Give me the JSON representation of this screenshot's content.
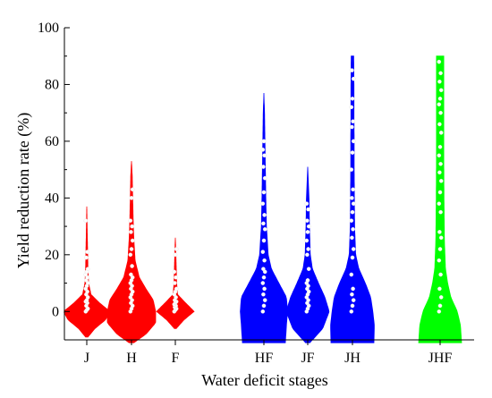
{
  "chart_data": {
    "type": "violin",
    "xlabel": "Water deficit stages",
    "ylabel": "Yield reduction rate (%)",
    "ylim": [
      -10,
      100
    ],
    "yticks": [
      0,
      20,
      40,
      60,
      80,
      100
    ],
    "grid": false,
    "colors": {
      "J": "#ff0000",
      "H": "#ff0000",
      "F": "#ff0000",
      "HF": "#0000ff",
      "JF": "#0000ff",
      "JH": "#0000ff",
      "JHF": "#00ff00"
    },
    "categories": [
      {
        "label": "J",
        "group": "single",
        "color": "#ff0000",
        "min": -9,
        "max": 37,
        "profile": [
          [
            -9,
            0.05
          ],
          [
            -6,
            0.35
          ],
          [
            -3,
            0.8
          ],
          [
            0,
            1
          ],
          [
            3,
            0.55
          ],
          [
            6,
            0.18
          ],
          [
            10,
            0.08
          ],
          [
            15,
            0.05
          ],
          [
            20,
            0.04
          ],
          [
            28,
            0.02
          ],
          [
            37,
            0
          ]
        ],
        "points": [
          0,
          0.5,
          1,
          2,
          3,
          3.5,
          4,
          5,
          6,
          7,
          8,
          9,
          10,
          11,
          12,
          13,
          14,
          15,
          19,
          21,
          32
        ]
      },
      {
        "label": "H",
        "group": "single",
        "color": "#ff0000",
        "min": -11,
        "max": 53,
        "profile": [
          [
            -11,
            0.1
          ],
          [
            -8,
            0.6
          ],
          [
            -4,
            1
          ],
          [
            0,
            1
          ],
          [
            4,
            0.9
          ],
          [
            8,
            0.6
          ],
          [
            12,
            0.32
          ],
          [
            18,
            0.15
          ],
          [
            25,
            0.1
          ],
          [
            32,
            0.07
          ],
          [
            40,
            0.05
          ],
          [
            48,
            0.03
          ],
          [
            53,
            0
          ]
        ],
        "points": [
          0,
          1,
          2,
          3,
          4,
          5,
          6,
          7,
          8,
          9,
          10,
          11,
          12,
          13,
          16,
          20,
          22,
          25,
          28,
          30,
          32,
          40,
          43
        ]
      },
      {
        "label": "F",
        "group": "single",
        "color": "#ff0000",
        "min": -6,
        "max": 26,
        "profile": [
          [
            -6,
            0.05
          ],
          [
            -3,
            0.45
          ],
          [
            0,
            1
          ],
          [
            3,
            0.55
          ],
          [
            6,
            0.12
          ],
          [
            10,
            0.07
          ],
          [
            15,
            0.05
          ],
          [
            20,
            0.03
          ],
          [
            26,
            0
          ]
        ],
        "points": [
          0,
          0.5,
          1,
          1.5,
          2,
          2.5,
          3,
          3.5,
          4,
          5,
          6,
          7,
          8,
          10,
          12,
          14,
          20,
          22
        ]
      },
      {
        "label": "HF",
        "group": "double",
        "color": "#0000ff",
        "min": -11,
        "max": 77,
        "profile": [
          [
            -11,
            1
          ],
          [
            -5,
            1.05
          ],
          [
            0,
            1.1
          ],
          [
            5,
            1.05
          ],
          [
            10,
            0.7
          ],
          [
            15,
            0.35
          ],
          [
            20,
            0.2
          ],
          [
            30,
            0.12
          ],
          [
            40,
            0.09
          ],
          [
            50,
            0.07
          ],
          [
            60,
            0.05
          ],
          [
            70,
            0.03
          ],
          [
            77,
            0
          ]
        ],
        "points": [
          0,
          2,
          4,
          6,
          8,
          10,
          12,
          14,
          15,
          18,
          21,
          25,
          29,
          31,
          34,
          38,
          42,
          47,
          51,
          55,
          57,
          60
        ]
      },
      {
        "label": "JF",
        "group": "double",
        "color": "#0000ff",
        "min": -11,
        "max": 51,
        "profile": [
          [
            -11,
            0.1
          ],
          [
            -6,
            0.7
          ],
          [
            0,
            1
          ],
          [
            5,
            0.8
          ],
          [
            10,
            0.5
          ],
          [
            15,
            0.22
          ],
          [
            20,
            0.12
          ],
          [
            30,
            0.08
          ],
          [
            40,
            0.06
          ],
          [
            51,
            0
          ]
        ],
        "points": [
          0,
          1,
          2,
          3,
          4,
          5,
          6,
          7,
          8,
          9,
          10,
          11,
          15,
          20,
          22,
          25,
          28,
          30,
          32,
          36,
          38
        ]
      },
      {
        "label": "JH",
        "group": "double",
        "color": "#0000ff",
        "min": -11,
        "max": 90,
        "profile": [
          [
            -11,
            1
          ],
          [
            -5,
            1.02
          ],
          [
            0,
            0.95
          ],
          [
            5,
            0.85
          ],
          [
            10,
            0.6
          ],
          [
            15,
            0.3
          ],
          [
            20,
            0.15
          ],
          [
            30,
            0.1
          ],
          [
            40,
            0.09
          ],
          [
            50,
            0.08
          ],
          [
            60,
            0.08
          ],
          [
            70,
            0.07
          ],
          [
            80,
            0.07
          ],
          [
            88,
            0.06
          ],
          [
            90,
            0.06
          ]
        ],
        "points": [
          0,
          2,
          4,
          6,
          8,
          13,
          19,
          22,
          26,
          29,
          32,
          35,
          38,
          40,
          43,
          50,
          56,
          60,
          65,
          67,
          72,
          75,
          82,
          85
        ]
      },
      {
        "label": "JHF",
        "group": "triple",
        "color": "#00ff00",
        "min": -11,
        "max": 90,
        "profile": [
          [
            -11,
            1
          ],
          [
            -5,
            0.95
          ],
          [
            0,
            0.8
          ],
          [
            5,
            0.5
          ],
          [
            10,
            0.35
          ],
          [
            15,
            0.25
          ],
          [
            25,
            0.2
          ],
          [
            40,
            0.18
          ],
          [
            55,
            0.17
          ],
          [
            70,
            0.17
          ],
          [
            85,
            0.17
          ],
          [
            90,
            0.17
          ]
        ],
        "points": [
          0,
          2,
          5,
          8,
          13,
          18,
          22,
          26,
          28,
          35,
          38,
          42,
          46,
          49,
          52,
          55,
          58,
          63,
          66,
          70,
          73,
          75,
          78,
          81,
          84,
          88
        ]
      }
    ]
  }
}
